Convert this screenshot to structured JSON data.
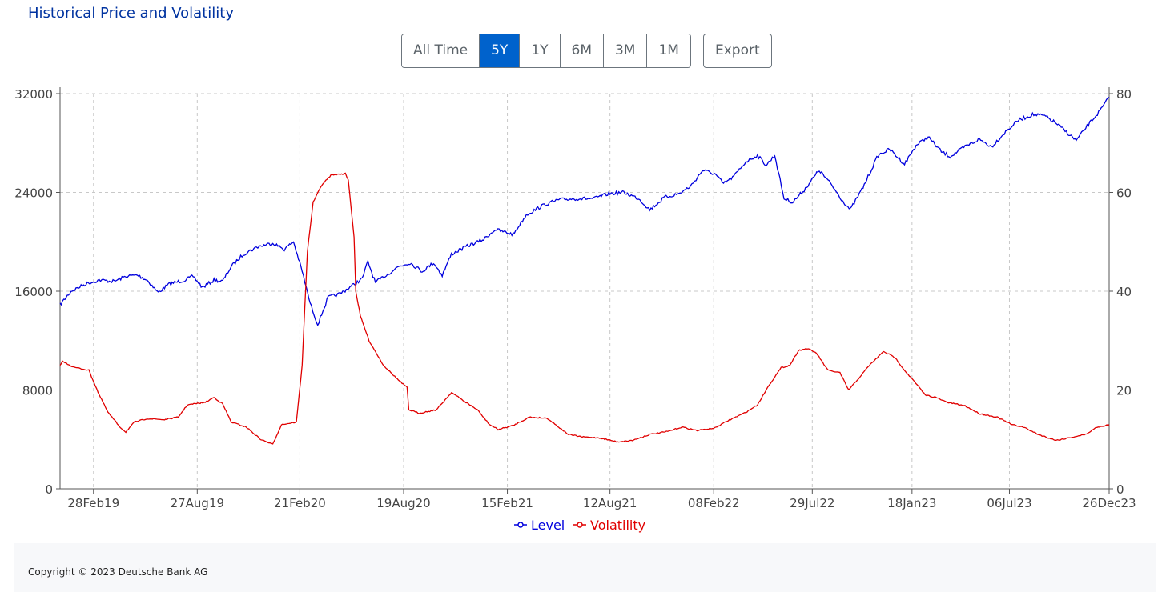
{
  "header": {
    "title": "Historical Price and Volatility"
  },
  "range_buttons": [
    {
      "label": "All Time",
      "active": false
    },
    {
      "label": "5Y",
      "active": true
    },
    {
      "label": "1Y",
      "active": false
    },
    {
      "label": "6M",
      "active": false
    },
    {
      "label": "3M",
      "active": false
    },
    {
      "label": "1M",
      "active": false
    }
  ],
  "export_label": "Export",
  "colors": {
    "level": "#0000dd",
    "volatility": "#e00000",
    "accent": "#0062cc",
    "title": "#0033a0"
  },
  "chart_data": {
    "type": "line",
    "title": "",
    "xlabel": "",
    "ylabel_left": "",
    "ylabel_right": "",
    "x_ticks": [
      "28Feb19",
      "27Aug19",
      "21Feb20",
      "19Aug20",
      "15Feb21",
      "12Aug21",
      "08Feb22",
      "29Jul22",
      "18Jan23",
      "06Jul23",
      "26Dec23"
    ],
    "y_left_ticks": [
      0,
      8000,
      16000,
      24000,
      32000
    ],
    "y_right_ticks": [
      0,
      20,
      40,
      60,
      80
    ],
    "y_left_lim": [
      0,
      32000
    ],
    "y_right_lim": [
      0,
      80
    ],
    "grid": true,
    "legend": "bottom-center",
    "series": [
      {
        "name": "Level",
        "axis": "left",
        "color": "#0000dd",
        "points": [
          [
            "2019-01-01",
            14900
          ],
          [
            "2019-01-20",
            16000
          ],
          [
            "2019-02-15",
            16600
          ],
          [
            "2019-03-10",
            16900
          ],
          [
            "2019-04-05",
            16800
          ],
          [
            "2019-04-25",
            17200
          ],
          [
            "2019-05-15",
            17300
          ],
          [
            "2019-06-01",
            16900
          ],
          [
            "2019-06-20",
            15900
          ],
          [
            "2019-07-10",
            16600
          ],
          [
            "2019-08-05",
            16900
          ],
          [
            "2019-08-20",
            17200
          ],
          [
            "2019-09-05",
            16300
          ],
          [
            "2019-09-25",
            16900
          ],
          [
            "2019-10-10",
            16800
          ],
          [
            "2019-10-25",
            18000
          ],
          [
            "2019-11-15",
            19000
          ],
          [
            "2019-12-10",
            19600
          ],
          [
            "2020-01-05",
            19900
          ],
          [
            "2020-01-25",
            19400
          ],
          [
            "2020-02-10",
            20000
          ],
          [
            "2020-02-25",
            17600
          ],
          [
            "2020-03-10",
            15000
          ],
          [
            "2020-03-23",
            13300
          ],
          [
            "2020-04-10",
            15500
          ],
          [
            "2020-05-01",
            15800
          ],
          [
            "2020-05-20",
            16400
          ],
          [
            "2020-06-08",
            17000
          ],
          [
            "2020-06-18",
            18400
          ],
          [
            "2020-07-01",
            16700
          ],
          [
            "2020-07-20",
            17300
          ],
          [
            "2020-08-10",
            18000
          ],
          [
            "2020-08-30",
            18300
          ],
          [
            "2020-09-20",
            17600
          ],
          [
            "2020-10-10",
            18300
          ],
          [
            "2020-10-25",
            17300
          ],
          [
            "2020-11-10",
            19000
          ],
          [
            "2020-12-05",
            19600
          ],
          [
            "2021-01-05",
            20200
          ],
          [
            "2021-01-25",
            21000
          ],
          [
            "2021-02-25",
            20600
          ],
          [
            "2021-03-20",
            22200
          ],
          [
            "2021-04-20",
            23000
          ],
          [
            "2021-05-15",
            23400
          ],
          [
            "2021-06-15",
            23500
          ],
          [
            "2021-07-15",
            23500
          ],
          [
            "2021-08-10",
            23900
          ],
          [
            "2021-09-05",
            24000
          ],
          [
            "2021-10-01",
            23500
          ],
          [
            "2021-10-20",
            22600
          ],
          [
            "2021-11-15",
            23600
          ],
          [
            "2021-12-10",
            23900
          ],
          [
            "2021-12-30",
            24500
          ],
          [
            "2022-01-20",
            25800
          ],
          [
            "2022-02-10",
            25500
          ],
          [
            "2022-02-25",
            24700
          ],
          [
            "2022-03-15",
            25300
          ],
          [
            "2022-04-05",
            26500
          ],
          [
            "2022-04-25",
            27000
          ],
          [
            "2022-05-10",
            26200
          ],
          [
            "2022-05-25",
            27000
          ],
          [
            "2022-06-10",
            23500
          ],
          [
            "2022-06-25",
            23200
          ],
          [
            "2022-07-15",
            24200
          ],
          [
            "2022-08-10",
            25800
          ],
          [
            "2022-08-30",
            24700
          ],
          [
            "2022-09-20",
            23300
          ],
          [
            "2022-10-03",
            22600
          ],
          [
            "2022-10-25",
            24400
          ],
          [
            "2022-11-20",
            27000
          ],
          [
            "2022-12-10",
            27500
          ],
          [
            "2023-01-05",
            26300
          ],
          [
            "2023-01-25",
            27800
          ],
          [
            "2023-02-15",
            28500
          ],
          [
            "2023-03-10",
            27300
          ],
          [
            "2023-03-25",
            26900
          ],
          [
            "2023-04-20",
            27700
          ],
          [
            "2023-05-15",
            28300
          ],
          [
            "2023-06-05",
            27700
          ],
          [
            "2023-06-25",
            28700
          ],
          [
            "2023-07-20",
            29800
          ],
          [
            "2023-08-15",
            30300
          ],
          [
            "2023-09-05",
            30200
          ],
          [
            "2023-09-25",
            29600
          ],
          [
            "2023-10-15",
            28800
          ],
          [
            "2023-10-30",
            28200
          ],
          [
            "2023-11-20",
            29500
          ],
          [
            "2023-12-10",
            30600
          ],
          [
            "2023-12-26",
            31700
          ]
        ]
      },
      {
        "name": "Volatility",
        "axis": "right",
        "color": "#e00000",
        "points": [
          [
            "2019-01-01",
            25.0
          ],
          [
            "2019-01-05",
            25.8
          ],
          [
            "2019-01-25",
            24.6
          ],
          [
            "2019-02-20",
            24.0
          ],
          [
            "2019-03-10",
            19.0
          ],
          [
            "2019-03-25",
            15.5
          ],
          [
            "2019-04-15",
            12.5
          ],
          [
            "2019-04-25",
            11.5
          ],
          [
            "2019-05-10",
            13.5
          ],
          [
            "2019-06-01",
            14.2
          ],
          [
            "2019-07-01",
            14.0
          ],
          [
            "2019-07-25",
            14.5
          ],
          [
            "2019-08-10",
            17.0
          ],
          [
            "2019-09-10",
            17.5
          ],
          [
            "2019-09-25",
            18.5
          ],
          [
            "2019-10-10",
            17.2
          ],
          [
            "2019-10-25",
            13.5
          ],
          [
            "2019-11-20",
            12.5
          ],
          [
            "2019-12-15",
            10.0
          ],
          [
            "2020-01-05",
            9.0
          ],
          [
            "2020-01-20",
            13.0
          ],
          [
            "2020-02-15",
            13.5
          ],
          [
            "2020-02-25",
            25.0
          ],
          [
            "2020-03-05",
            48.0
          ],
          [
            "2020-03-15",
            58.0
          ],
          [
            "2020-03-30",
            61.5
          ],
          [
            "2020-04-15",
            63.5
          ],
          [
            "2020-05-10",
            63.8
          ],
          [
            "2020-05-15",
            62.5
          ],
          [
            "2020-05-25",
            51.0
          ],
          [
            "2020-05-28",
            40.0
          ],
          [
            "2020-06-05",
            35.0
          ],
          [
            "2020-06-20",
            30.0
          ],
          [
            "2020-07-15",
            25.0
          ],
          [
            "2020-08-10",
            22.0
          ],
          [
            "2020-08-25",
            20.5
          ],
          [
            "2020-08-28",
            16.0
          ],
          [
            "2020-09-15",
            15.3
          ],
          [
            "2020-10-15",
            16.0
          ],
          [
            "2020-11-10",
            19.5
          ],
          [
            "2020-12-05",
            17.5
          ],
          [
            "2020-12-25",
            16.0
          ],
          [
            "2021-01-15",
            13.0
          ],
          [
            "2021-01-30",
            12.0
          ],
          [
            "2021-02-25",
            12.8
          ],
          [
            "2021-03-25",
            14.5
          ],
          [
            "2021-04-25",
            14.3
          ],
          [
            "2021-05-15",
            12.5
          ],
          [
            "2021-06-01",
            11.0
          ],
          [
            "2021-06-25",
            10.5
          ],
          [
            "2021-07-25",
            10.3
          ],
          [
            "2021-08-25",
            9.5
          ],
          [
            "2021-09-20",
            9.8
          ],
          [
            "2021-10-20",
            11.0
          ],
          [
            "2021-11-20",
            11.6
          ],
          [
            "2021-12-15",
            12.5
          ],
          [
            "2022-01-10",
            11.8
          ],
          [
            "2022-02-10",
            12.3
          ],
          [
            "2022-03-05",
            13.8
          ],
          [
            "2022-04-05",
            15.5
          ],
          [
            "2022-04-25",
            17.0
          ],
          [
            "2022-05-15",
            21.0
          ],
          [
            "2022-06-05",
            24.5
          ],
          [
            "2022-06-20",
            25.0
          ],
          [
            "2022-07-05",
            28.0
          ],
          [
            "2022-07-20",
            28.4
          ],
          [
            "2022-08-05",
            27.5
          ],
          [
            "2022-08-25",
            24.0
          ],
          [
            "2022-09-15",
            23.5
          ],
          [
            "2022-09-30",
            20.0
          ],
          [
            "2022-10-15",
            22.0
          ],
          [
            "2022-11-05",
            25.0
          ],
          [
            "2022-11-30",
            27.8
          ],
          [
            "2022-12-20",
            26.5
          ],
          [
            "2023-01-05",
            24.0
          ],
          [
            "2023-01-20",
            22.0
          ],
          [
            "2023-02-10",
            19.0
          ],
          [
            "2023-02-28",
            18.5
          ],
          [
            "2023-03-20",
            17.5
          ],
          [
            "2023-04-20",
            16.8
          ],
          [
            "2023-05-15",
            15.2
          ],
          [
            "2023-06-15",
            14.5
          ],
          [
            "2023-07-10",
            13.0
          ],
          [
            "2023-07-30",
            12.5
          ],
          [
            "2023-08-25",
            11.0
          ],
          [
            "2023-09-25",
            9.8
          ],
          [
            "2023-10-25",
            10.5
          ],
          [
            "2023-11-15",
            11.0
          ],
          [
            "2023-12-05",
            12.5
          ],
          [
            "2023-12-20",
            12.8
          ],
          [
            "2023-12-26",
            13.0
          ]
        ]
      }
    ]
  },
  "footer": {
    "copyright": "Copyright © 2023 Deutsche Bank AG"
  }
}
